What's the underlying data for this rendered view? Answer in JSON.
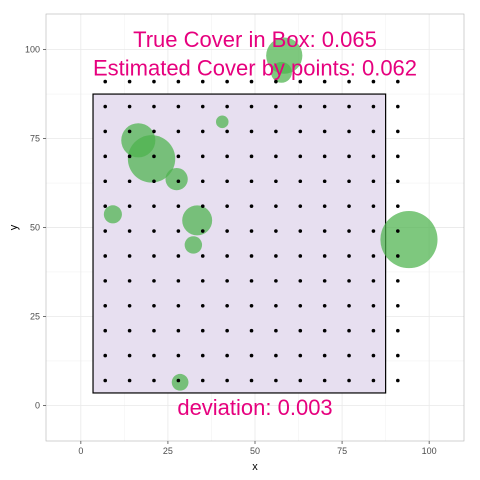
{
  "chart_data": {
    "type": "scatter",
    "xlabel": "x",
    "ylabel": "y",
    "xlim": [
      -10,
      110
    ],
    "ylim": [
      -10,
      110
    ],
    "xticks": [
      0,
      25,
      50,
      75,
      100
    ],
    "yticks": [
      0,
      25,
      50,
      75,
      100
    ],
    "grid": true,
    "annotations": [
      {
        "text": "True Cover in Box: 0.065",
        "x": 50,
        "y": 103
      },
      {
        "text": "Estimated Cover by points: 0.062",
        "x": 50,
        "y": 95
      },
      {
        "text": "deviation: 0.003",
        "x": 50,
        "y": -0.5
      }
    ],
    "box": {
      "xmin": 3.5,
      "xmax": 87.5,
      "ymin": 3.5,
      "ymax": 87.5
    },
    "grid_points": {
      "x_start": 7,
      "x_step": 7,
      "x_count": 13,
      "y_start": 7,
      "y_step": 7,
      "y_count": 13
    },
    "circles": [
      {
        "x": 16.5,
        "y": 74.5,
        "r": 4.9
      },
      {
        "x": 20.3,
        "y": 69.3,
        "r": 6.8
      },
      {
        "x": 27.5,
        "y": 63.6,
        "r": 3.2
      },
      {
        "x": 9.2,
        "y": 53.7,
        "r": 2.6
      },
      {
        "x": 33.4,
        "y": 52.0,
        "r": 4.3
      },
      {
        "x": 32.3,
        "y": 45.1,
        "r": 2.5
      },
      {
        "x": 40.6,
        "y": 79.7,
        "r": 1.8
      },
      {
        "x": 58.4,
        "y": 98.3,
        "r": 5.2
      },
      {
        "x": 57.6,
        "y": 93.6,
        "r": 3.0
      },
      {
        "x": 94.2,
        "y": 46.6,
        "r": 8.2
      },
      {
        "x": 28.5,
        "y": 6.5,
        "r": 2.4
      }
    ],
    "colors": {
      "panel": "#ebebeb",
      "grid_major": "#ffffff",
      "box_fill": "#e7dff0",
      "box_stroke": "#000000",
      "circle_fill": "#4cb34c",
      "point": "#000000",
      "annotation": "#e6007e"
    }
  }
}
